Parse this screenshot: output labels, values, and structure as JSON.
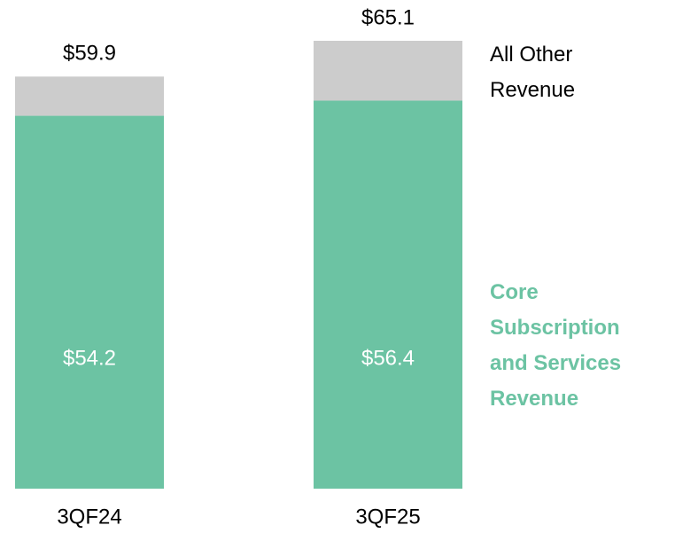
{
  "chart_data": {
    "type": "stacked_bar",
    "categories": [
      "3QF24",
      "3QF25"
    ],
    "series": [
      {
        "name": "Core Subscription and Services Revenue",
        "color": "#6cc3a3",
        "values": [
          54.2,
          56.4
        ],
        "value_labels": [
          "$54.2",
          "$56.4"
        ]
      },
      {
        "name": "All Other Revenue",
        "color": "#cccccc",
        "values": [
          5.7,
          8.7
        ]
      }
    ],
    "totals": [
      59.9,
      65.1
    ],
    "total_labels": [
      "$59.9",
      "$65.1"
    ]
  }
}
